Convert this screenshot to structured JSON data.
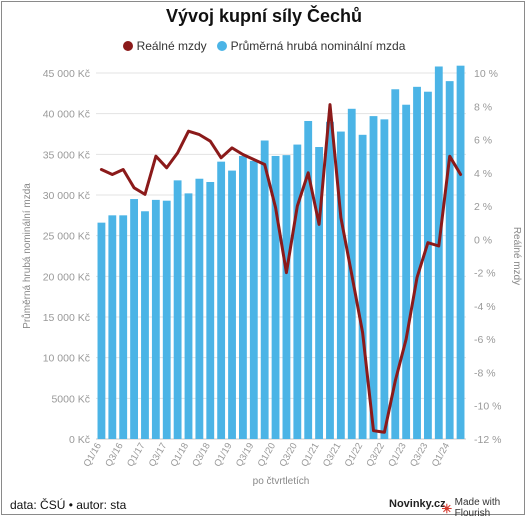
{
  "title": "Vývoj kupní síly Čechů",
  "footer": {
    "source": "data: ČSÚ • autor: sta",
    "brand": "Novinky.cz",
    "flourish": "Made with Flourish"
  },
  "colors": {
    "bar": "#4bb4e6",
    "line": "#8b1a1a",
    "grid": "#e3e3e3",
    "axis_text": "#999999"
  },
  "chart_data": {
    "type": "bar",
    "title": "Vývoj kupní síly Čechů",
    "xlabel": "po čtvrtletích",
    "ylabel": "Průměrná hrubá nominální mzda",
    "y2label": "Reálné mzdy",
    "ylim": [
      0,
      45000
    ],
    "y2lim": [
      -12,
      10
    ],
    "grid": true,
    "legend_position": "top-center",
    "y_ticks": [
      "0 Kč",
      "5000 Kč",
      "10 000 Kč",
      "15 000 Kč",
      "20 000 Kč",
      "25 000 Kč",
      "30 000 Kč",
      "35 000 Kč",
      "40 000 Kč",
      "45 000 Kč"
    ],
    "y_tick_values": [
      0,
      5000,
      10000,
      15000,
      20000,
      25000,
      30000,
      35000,
      40000,
      45000
    ],
    "y2_ticks": [
      "-12 %",
      "-10 %",
      "-8 %",
      "-6 %",
      "-4 %",
      "-2 %",
      "0 %",
      "2 %",
      "4 %",
      "6 %",
      "8 %",
      "10 %"
    ],
    "y2_tick_values": [
      -12,
      -10,
      -8,
      -6,
      -4,
      -2,
      0,
      2,
      4,
      6,
      8,
      10
    ],
    "categories": [
      "Q1/16",
      "Q2/16",
      "Q3/16",
      "Q4/16",
      "Q1/17",
      "Q2/17",
      "Q3/17",
      "Q4/17",
      "Q1/18",
      "Q2/18",
      "Q3/18",
      "Q4/18",
      "Q1/19",
      "Q2/19",
      "Q3/19",
      "Q4/19",
      "Q1/20",
      "Q2/20",
      "Q3/20",
      "Q4/20",
      "Q1/21",
      "Q2/21",
      "Q3/21",
      "Q4/21",
      "Q1/22",
      "Q2/22",
      "Q3/22",
      "Q4/22",
      "Q1/23",
      "Q2/23",
      "Q3/23",
      "Q4/23",
      "Q1/24",
      "Q2/24"
    ],
    "x_tick_labels": [
      "Q1/16",
      "Q3/16",
      "Q1/17",
      "Q3/17",
      "Q1/18",
      "Q3/18",
      "Q1/19",
      "Q3/19",
      "Q1/20",
      "Q3/20",
      "Q1/21",
      "Q3/21",
      "Q1/22",
      "Q3/22",
      "Q1/23",
      "Q3/23",
      "Q1/24"
    ],
    "series": [
      {
        "name": "Reálné mzdy",
        "kind": "line",
        "axis": "right",
        "color": "#8b1a1a",
        "values": [
          4.2,
          3.9,
          4.2,
          3.1,
          2.7,
          5.0,
          4.3,
          5.2,
          6.5,
          6.3,
          5.9,
          4.9,
          5.5,
          5.1,
          4.8,
          4.5,
          1.9,
          -2.0,
          2.0,
          4.0,
          0.9,
          8.1,
          1.3,
          -2.1,
          -5.6,
          -11.5,
          -11.6,
          -8.5,
          -6.0,
          -2.3,
          -0.2,
          -0.4,
          5.0,
          3.9
        ]
      },
      {
        "name": "Průměrná hrubá nominální mzda",
        "kind": "bar",
        "axis": "left",
        "color": "#4bb4e6",
        "values": [
          26600,
          27500,
          27500,
          29500,
          28000,
          29400,
          29300,
          31800,
          30200,
          32000,
          31600,
          34100,
          33000,
          34800,
          34200,
          36700,
          34800,
          34900,
          36200,
          39100,
          35900,
          39000,
          37800,
          40600,
          37400,
          39700,
          39300,
          43000,
          41100,
          43300,
          42700,
          45800,
          44000,
          45900
        ]
      }
    ]
  }
}
